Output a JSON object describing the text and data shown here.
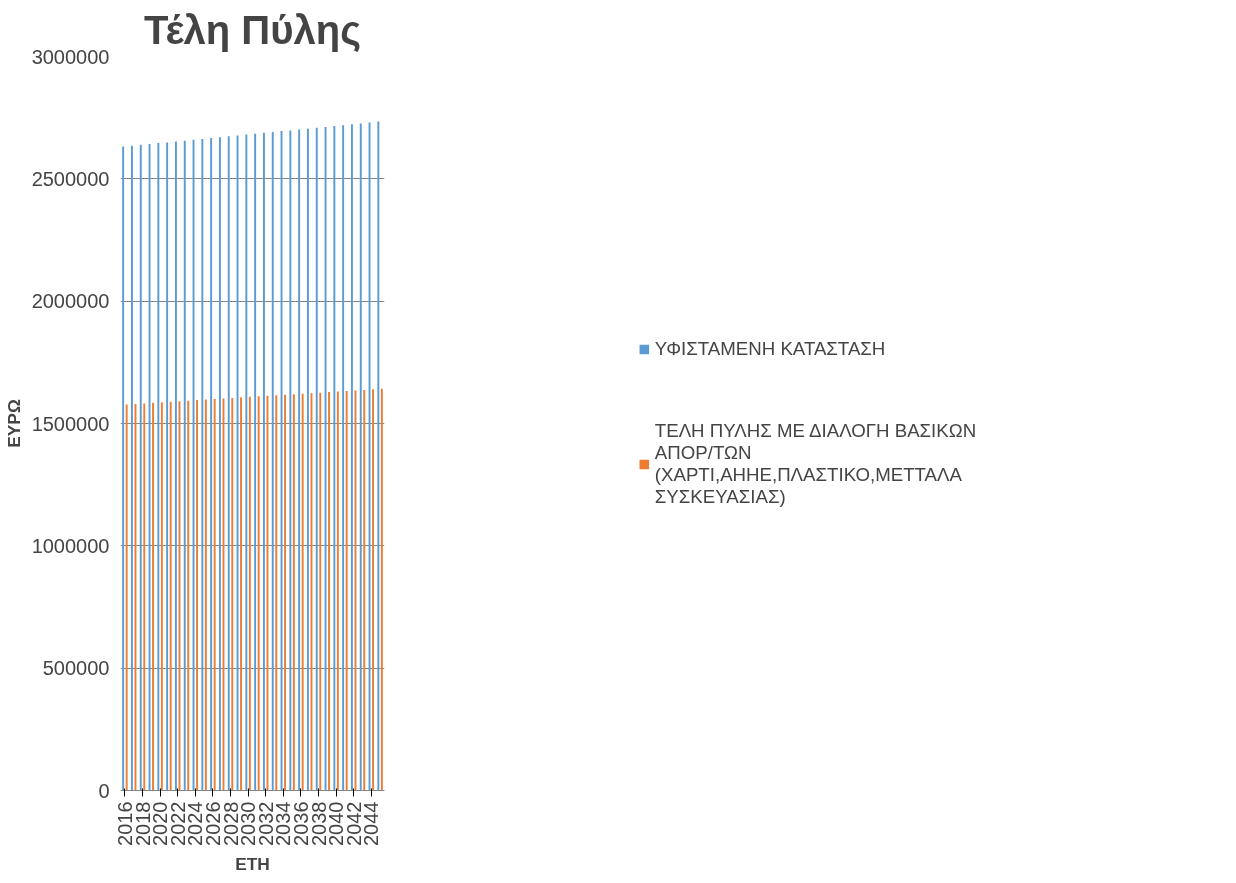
{
  "chart_data": {
    "type": "bar",
    "title": "Τέλη Πύλης",
    "xlabel": "ΕΤΗ",
    "ylabel": "ΕΥΡΩ",
    "categories": [
      "2016",
      null,
      "2018",
      null,
      "2020",
      null,
      "2022",
      null,
      "2024",
      null,
      "2026",
      null,
      "2028",
      null,
      "2030",
      null,
      "2032",
      null,
      "2034",
      null,
      "2036",
      null,
      "2038",
      null,
      "2040",
      null,
      "2042",
      null,
      "2044",
      null
    ],
    "series": [
      {
        "name": "ΥΦΙΣΤΑΜΕΝΗ ΚΑΤΑΣΤΑΣΗ",
        "color": "#5b9bd5",
        "values": [
          2632000,
          2635000,
          2639000,
          2642000,
          2646000,
          2649000,
          2653000,
          2656000,
          2660000,
          2663000,
          2667000,
          2670000,
          2674000,
          2677000,
          2681000,
          2684000,
          2688000,
          2691000,
          2695000,
          2698000,
          2702000,
          2705000,
          2709000,
          2712000,
          2716000,
          2719000,
          2723000,
          2726000,
          2730000,
          2734000
        ]
      },
      {
        "name": "ΤΕΛΗ ΠΥΛΗΣ ΜΕ ΔΙΑΛΟΓΗ ΒΑΣΙΚΩΝ ΑΠΟΡ/ΤΩΝ (ΧΑΡΤΙ,ΑΗΗΕ,ΠΛΑΣΤΙΚΟ,ΜΕΤΤΑΛΑ ΣΥΣΚΕΥΑΣΙΑΣ)",
        "color": "#ed7d31",
        "values": [
          1578000,
          1580000,
          1582000,
          1585000,
          1587000,
          1589000,
          1591000,
          1593000,
          1596000,
          1598000,
          1600000,
          1602000,
          1604000,
          1607000,
          1609000,
          1611000,
          1613000,
          1615000,
          1618000,
          1620000,
          1622000,
          1624000,
          1626000,
          1629000,
          1631000,
          1633000,
          1635000,
          1637000,
          1640000,
          1642000
        ]
      }
    ],
    "ylim": [
      0,
      3000000
    ],
    "yticks": [
      0,
      500000,
      1000000,
      1500000,
      2000000,
      2500000,
      3000000
    ],
    "grid": "y",
    "legend": "right"
  }
}
